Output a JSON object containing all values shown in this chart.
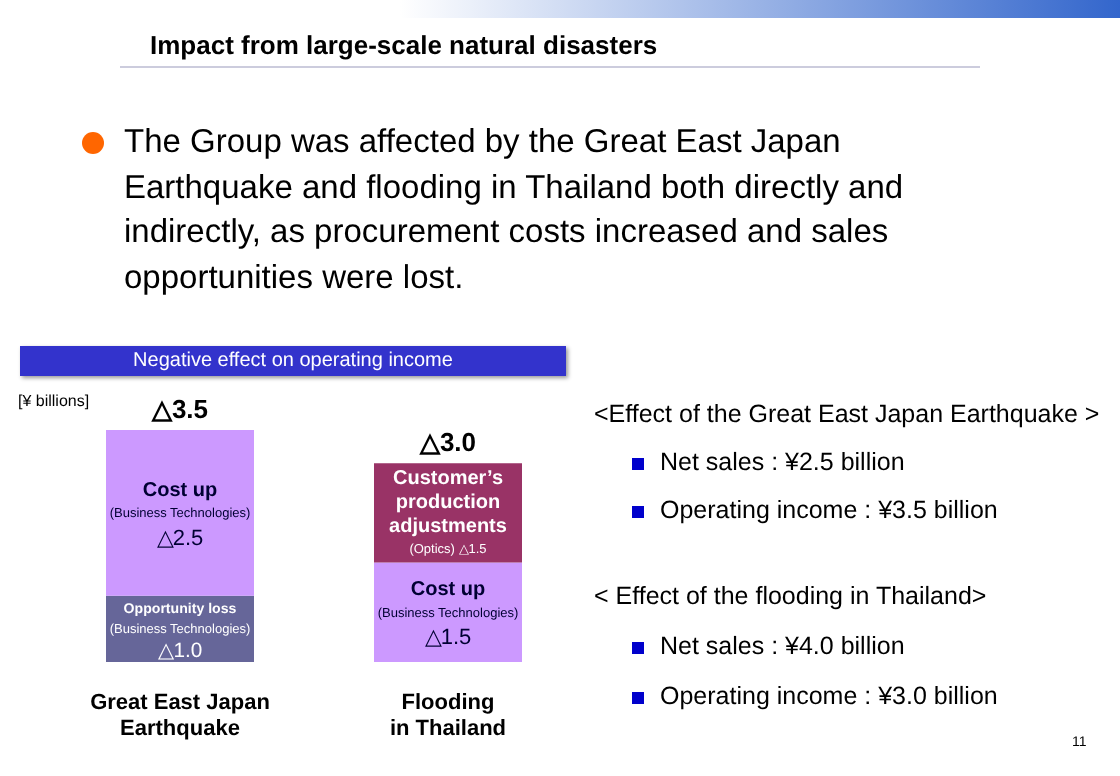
{
  "chart_data": {
    "type": "bar",
    "title": "Impact from large-scale natural disasters",
    "subtitle": "The Group was affected by the Great East Japan Earthquake and flooding in Thailand both directly and indirectly, as procurement costs increased and sales opportunities were lost.",
    "ylabel": "[¥ billions]",
    "categories": [
      "Great East Japan\nEarthquake",
      "Flooding\nin Thailand"
    ],
    "stacked": true,
    "series": [
      {
        "colors": [
          "#666699",
          "#cc99ff"
        ],
        "values": [
          1.0,
          1.5
        ],
        "value_labels": [
          "Opportunity loss\n(Business Technologies)\n△1.0",
          "Cost up\n(Business Technologies)\n△1.5"
        ]
      },
      {
        "colors": [
          "#cc99ff",
          "#993366"
        ],
        "values": [
          2.5,
          1.5
        ],
        "value_labels": [
          "Cost up\n(Business Technologies)\n△2.5",
          "Customer’s\nproduction\nadjustments\n(Optics) △1.5"
        ]
      }
    ],
    "totals": [
      "△3.5",
      "△3.0"
    ],
    "annotations": [
      "Negative effect on operating income",
      "<Effect of the Great East Japan Earthquake >",
      "Net sales : ¥2.5 billion",
      "Operating income : ¥3.5 billion",
      "< Effect of the flooding in Thailand>",
      "Net sales : ¥4.0 billion",
      "Operating income : ¥3.0 billion",
      "11"
    ]
  }
}
